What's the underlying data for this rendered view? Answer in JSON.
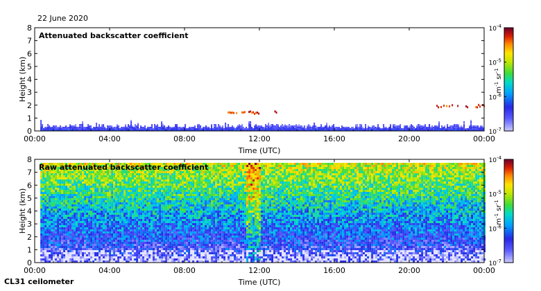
{
  "date_label": "22 June 2020",
  "footer": "CL31 ceilometer",
  "chart_data": [
    {
      "type": "heatmap",
      "title": "Attenuated backscatter coefficient",
      "xlabel": "Time (UTC)",
      "ylabel": "Height (km)",
      "x_ticks": [
        "00:00",
        "04:00",
        "08:00",
        "12:00",
        "16:00",
        "20:00",
        "00:00"
      ],
      "x_range_hours": [
        0,
        24
      ],
      "y_ticks": [
        0,
        1,
        2,
        3,
        4,
        5,
        6,
        7,
        8
      ],
      "ylim": [
        0,
        8
      ],
      "colorbar": {
        "ticks": [
          "10",
          "10",
          "10",
          "10"
        ],
        "exponents": [
          "-7",
          "-6",
          "-5",
          "-4"
        ],
        "label": "m",
        "label_exp": "-1",
        "label2": "sr",
        "label2_exp": "-1"
      },
      "features": [
        {
          "desc": "boundary layer signal",
          "x_start_h": 0.3,
          "x_end_h": 24,
          "height_km": [
            0,
            0.5
          ]
        },
        {
          "desc": "thin cloud",
          "x_start_h": 10.3,
          "x_end_h": 12.0,
          "height_km": 1.4
        },
        {
          "desc": "thin cloud",
          "x_start_h": 12.8,
          "x_end_h": 13.0,
          "height_km": 1.5
        },
        {
          "desc": "cloud layer",
          "x_start_h": 21.3,
          "x_end_h": 24,
          "height_km": 1.9
        }
      ]
    },
    {
      "type": "heatmap",
      "title": "Raw attenuated backscatter coefficient",
      "xlabel": "Time (UTC)",
      "ylabel": "Height (km)",
      "x_ticks": [
        "00:00",
        "04:00",
        "08:00",
        "12:00",
        "16:00",
        "20:00",
        "00:00"
      ],
      "x_range_hours": [
        0,
        24
      ],
      "y_ticks": [
        0,
        1,
        2,
        3,
        4,
        5,
        6,
        7,
        8
      ],
      "ylim": [
        0,
        8
      ],
      "colorbar": {
        "ticks": [
          "10",
          "10",
          "10",
          "10"
        ],
        "exponents": [
          "-7",
          "-6",
          "-5",
          "-4"
        ],
        "label": "m",
        "label_exp": "-1",
        "label2": "sr",
        "label2_exp": "-1"
      },
      "features": [
        {
          "desc": "noise increasing with height",
          "x_start_h": 0.3,
          "x_end_h": 24,
          "height_km": [
            0,
            7.7
          ]
        },
        {
          "desc": "enhanced signal column",
          "x_start_h": 11.3,
          "x_end_h": 12.0,
          "height_km": [
            0,
            7.7
          ]
        }
      ]
    }
  ]
}
